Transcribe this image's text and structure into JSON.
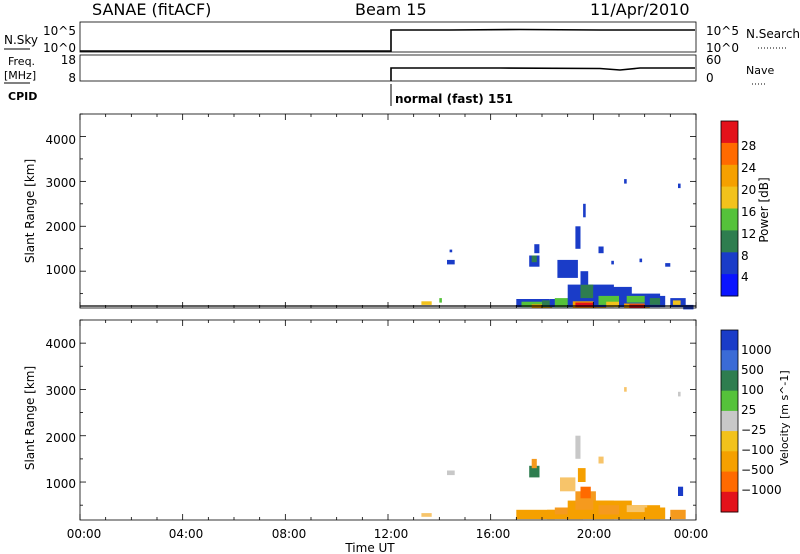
{
  "header": {
    "station": "SANAE (fitACF)",
    "beam": "Beam 15",
    "date": "11/Apr/2010"
  },
  "status_panels": {
    "nsky": {
      "label": "N.Sky",
      "ticks": [
        "10^5",
        "10^0"
      ]
    },
    "nsearch": {
      "label": "N.Search",
      "ticks": [
        "10^5",
        "10^0"
      ]
    },
    "freq": {
      "label_line1": "Freq.",
      "label_line2": "[MHz]",
      "ticks": [
        "18",
        "8"
      ]
    },
    "nave": {
      "label": "Nave",
      "ticks": [
        "60",
        "0"
      ]
    },
    "cpid": {
      "label": "CPID",
      "program": "normal (fast) 151"
    }
  },
  "colors": {
    "blue": "#1a3cc8",
    "dkgreen": "#2e7d4f",
    "green": "#55c23a",
    "yellow": "#f2c21c",
    "orange": "#f5a000",
    "dkorange": "#ff6a00",
    "red": "#e3121b",
    "grey": "#c8c8c8",
    "ltorange": "#f7c46a",
    "midorange": "#f59a1e"
  },
  "chart_data": [
    {
      "type": "heatmap",
      "parameter": "Power",
      "ylabel": "Slant Range [km]",
      "ylim": [
        180,
        4500
      ],
      "yticks": [
        "1000",
        "2000",
        "3000",
        "4000"
      ],
      "xlim": [
        0,
        24
      ],
      "colorbar": {
        "label": "Power [dB]",
        "ticks": [
          "28",
          "24",
          "20",
          "16",
          "12",
          "8",
          "4"
        ],
        "colors": [
          "#0a14ff",
          "#1a3cc8",
          "#2e7d4f",
          "#55c23a",
          "#f2c21c",
          "#f5a000",
          "#ff6a00",
          "#e3121b"
        ]
      },
      "cells": [
        [
          13.3,
          250,
          0.4,
          80,
          "yellow"
        ],
        [
          14.0,
          300,
          0.1,
          100,
          "green"
        ],
        [
          14.3,
          1150,
          0.3,
          100,
          "blue"
        ],
        [
          14.4,
          1420,
          0.1,
          60,
          "blue"
        ],
        [
          17.0,
          200,
          1.3,
          180,
          "blue"
        ],
        [
          17.2,
          200,
          0.8,
          120,
          "green"
        ],
        [
          17.6,
          180,
          0.8,
          80,
          "orange"
        ],
        [
          17.5,
          1100,
          0.4,
          250,
          "blue"
        ],
        [
          17.6,
          1200,
          0.2,
          150,
          "dkgreen"
        ],
        [
          17.7,
          1400,
          0.2,
          200,
          "blue"
        ],
        [
          18.0,
          200,
          1.0,
          150,
          "dkgreen"
        ],
        [
          18.3,
          200,
          1.2,
          180,
          "blue"
        ],
        [
          18.5,
          200,
          0.7,
          200,
          "green"
        ],
        [
          18.6,
          850,
          0.8,
          400,
          "blue"
        ],
        [
          19.0,
          200,
          1.8,
          500,
          "blue"
        ],
        [
          19.2,
          180,
          1.3,
          150,
          "orange"
        ],
        [
          19.3,
          200,
          0.8,
          100,
          "red"
        ],
        [
          19.5,
          400,
          0.5,
          300,
          "dkgreen"
        ],
        [
          19.5,
          700,
          0.3,
          300,
          "blue"
        ],
        [
          19.3,
          1500,
          0.2,
          500,
          "blue"
        ],
        [
          19.6,
          2200,
          0.1,
          300,
          "blue"
        ],
        [
          20.0,
          200,
          1.5,
          450,
          "blue"
        ],
        [
          20.2,
          250,
          1.0,
          200,
          "green"
        ],
        [
          20.5,
          200,
          0.5,
          120,
          "yellow"
        ],
        [
          20.2,
          1400,
          0.2,
          150,
          "blue"
        ],
        [
          20.7,
          1150,
          0.1,
          80,
          "blue"
        ],
        [
          21.0,
          200,
          1.6,
          300,
          "blue"
        ],
        [
          21.2,
          180,
          1.0,
          100,
          "orange"
        ],
        [
          21.4,
          180,
          0.6,
          80,
          "red"
        ],
        [
          21.3,
          300,
          0.8,
          150,
          "green"
        ],
        [
          21.8,
          1200,
          0.1,
          80,
          "blue"
        ],
        [
          21.2,
          2950,
          0.1,
          100,
          "blue"
        ],
        [
          22.0,
          200,
          0.8,
          250,
          "blue"
        ],
        [
          22.2,
          250,
          0.4,
          150,
          "dkgreen"
        ],
        [
          23.0,
          200,
          0.6,
          200,
          "blue"
        ],
        [
          23.1,
          250,
          0.3,
          100,
          "yellow"
        ],
        [
          23.5,
          150,
          0.4,
          100,
          "blue"
        ],
        [
          22.8,
          1100,
          0.2,
          80,
          "blue"
        ],
        [
          23.3,
          2850,
          0.1,
          100,
          "blue"
        ]
      ]
    },
    {
      "type": "heatmap",
      "parameter": "Velocity",
      "ylabel": "Slant Range [km]",
      "ylim": [
        180,
        4500
      ],
      "yticks": [
        "1000",
        "2000",
        "3000",
        "4000"
      ],
      "xlim": [
        0,
        24
      ],
      "xticks": [
        "00:00",
        "04:00",
        "08:00",
        "12:00",
        "16:00",
        "20:00",
        "00:00"
      ],
      "xlabel": "Time UT",
      "colorbar": {
        "label": "Velocity [m s^-1]",
        "ticks": [
          "1000",
          "500",
          "100",
          "25",
          "−25",
          "−100",
          "−500",
          "−1000"
        ],
        "colors": [
          "#1a3cc8",
          "#3b6bd6",
          "#2e7d4f",
          "#55c23a",
          "#c8c8c8",
          "#f2c21c",
          "#f5a000",
          "#ff6a00",
          "#e3121b"
        ]
      },
      "cells": [
        [
          13.3,
          250,
          0.4,
          80,
          "ltorange"
        ],
        [
          14.3,
          1150,
          0.3,
          100,
          "grey"
        ],
        [
          17.0,
          200,
          1.5,
          200,
          "orange"
        ],
        [
          17.5,
          1100,
          0.4,
          250,
          "dkgreen"
        ],
        [
          17.6,
          1300,
          0.2,
          200,
          "midorange"
        ],
        [
          18.2,
          200,
          1.4,
          200,
          "orange"
        ],
        [
          18.5,
          300,
          1.0,
          150,
          "midorange"
        ],
        [
          18.7,
          800,
          0.6,
          300,
          "ltorange"
        ],
        [
          19.0,
          200,
          1.8,
          400,
          "orange"
        ],
        [
          19.3,
          400,
          0.8,
          400,
          "midorange"
        ],
        [
          19.5,
          650,
          0.4,
          250,
          "dkorange"
        ],
        [
          19.4,
          1000,
          0.3,
          300,
          "orange"
        ],
        [
          19.3,
          1500,
          0.2,
          500,
          "grey"
        ],
        [
          20.0,
          200,
          1.5,
          400,
          "orange"
        ],
        [
          20.2,
          300,
          0.8,
          200,
          "midorange"
        ],
        [
          20.2,
          1400,
          0.2,
          150,
          "ltorange"
        ],
        [
          21.0,
          200,
          1.6,
          300,
          "orange"
        ],
        [
          21.3,
          350,
          0.8,
          150,
          "ltorange"
        ],
        [
          21.2,
          2950,
          0.1,
          100,
          "ltorange"
        ],
        [
          22.0,
          200,
          0.8,
          250,
          "orange"
        ],
        [
          23.0,
          200,
          0.6,
          200,
          "midorange"
        ],
        [
          23.3,
          700,
          0.2,
          200,
          "blue"
        ],
        [
          23.3,
          2850,
          0.1,
          100,
          "grey"
        ]
      ]
    }
  ]
}
